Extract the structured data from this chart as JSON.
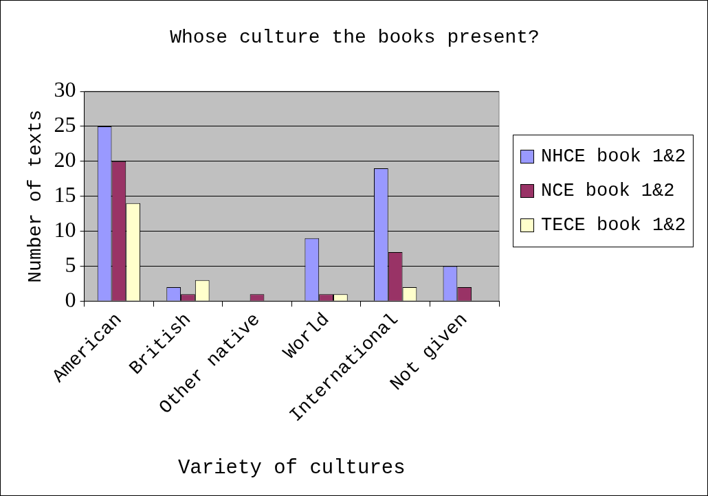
{
  "chart_data": {
    "type": "bar",
    "title": "Whose culture the books present?",
    "xlabel": "Variety of cultures",
    "ylabel": "Number of texts",
    "categories": [
      "American",
      "British",
      "Other native",
      "World",
      "International",
      "Not given"
    ],
    "series": [
      {
        "name": "NHCE book 1&2",
        "color": "#9999ff",
        "values": [
          25,
          2,
          0,
          9,
          19,
          5
        ]
      },
      {
        "name": "NCE book 1&2",
        "color": "#993366",
        "values": [
          20,
          1,
          1,
          1,
          7,
          2
        ]
      },
      {
        "name": "TECE book 1&2",
        "color": "#ffffcc",
        "values": [
          14,
          3,
          0,
          1,
          2,
          0
        ]
      }
    ],
    "ylim": [
      0,
      30
    ],
    "yticks": [
      0,
      5,
      10,
      15,
      20,
      25,
      30
    ],
    "grid": "y",
    "legend": "right"
  }
}
